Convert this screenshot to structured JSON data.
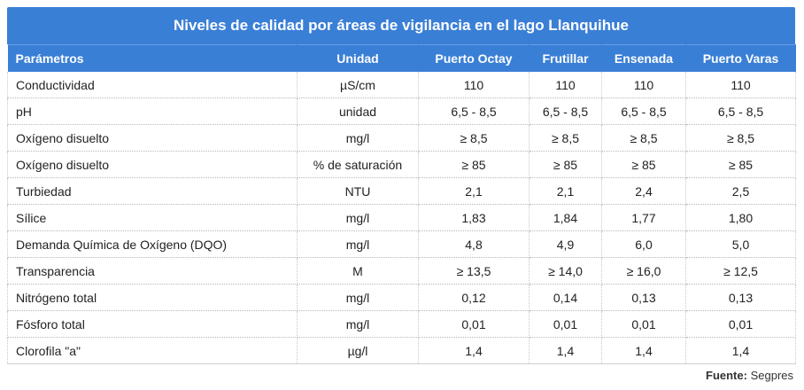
{
  "title": "Niveles de calidad por áreas de vigilancia en el lago Llanquihue",
  "columns": [
    "Parámetros",
    "Unidad",
    "Puerto Octay",
    "Frutillar",
    "Ensenada",
    "Puerto Varas"
  ],
  "rows": [
    [
      "Conductividad",
      "µS/cm",
      "110",
      "110",
      "110",
      "110"
    ],
    [
      "pH",
      "unidad",
      "6,5 - 8,5",
      "6,5 - 8,5",
      "6,5 - 8,5",
      "6,5 - 8,5"
    ],
    [
      "Oxígeno disuelto",
      "mg/l",
      "≥ 8,5",
      "≥ 8,5",
      "≥ 8,5",
      "≥ 8,5"
    ],
    [
      "Oxígeno disuelto",
      "% de saturación",
      "≥ 85",
      "≥ 85",
      "≥ 85",
      "≥ 85"
    ],
    [
      "Turbiedad",
      "NTU",
      "2,1",
      "2,1",
      "2,4",
      "2,5"
    ],
    [
      "Sílice",
      "mg/l",
      "1,83",
      "1,84",
      "1,77",
      "1,80"
    ],
    [
      "Demanda Química de Oxígeno (DQO)",
      "mg/l",
      "4,8",
      "4,9",
      "6,0",
      "5,0"
    ],
    [
      "Transparencia",
      "M",
      "≥ 13,5",
      "≥ 14,0",
      "≥ 16,0",
      "≥ 12,5"
    ],
    [
      "Nitrógeno total",
      "mg/l",
      "0,12",
      "0,14",
      "0,13",
      "0,13"
    ],
    [
      "Fósforo total",
      "mg/l",
      "0,01",
      "0,01",
      "0,01",
      "0,01"
    ],
    [
      "Clorofila \"a\"",
      "µg/l",
      "1,4",
      "1,4",
      "1,4",
      "1,4"
    ]
  ],
  "source": {
    "label": "Fuente:",
    "value": "Segpres"
  },
  "colors": {
    "header_bg": "#3a7fd6",
    "header_text": "#ffffff"
  }
}
